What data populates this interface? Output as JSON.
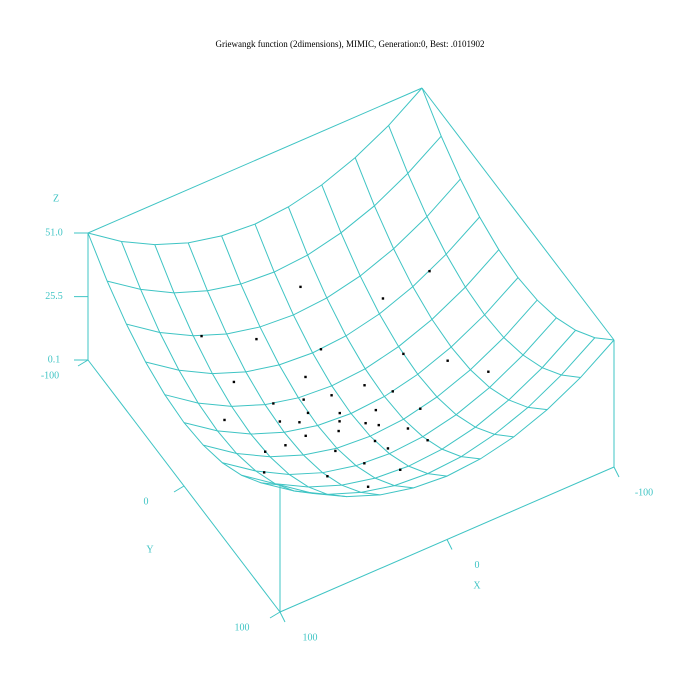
{
  "chart_data": {
    "type": "surface3d",
    "title": "Griewangk function (2dimensions), MIMIC, Generation:0, Best: .0101902",
    "xlabel": "X",
    "ylabel": "Y",
    "zlabel": "Z",
    "xlim": [
      -100,
      100
    ],
    "ylim": [
      -100,
      100
    ],
    "zlim": [
      0.1,
      51
    ],
    "xticks": [
      -100,
      0,
      100
    ],
    "yticks": [
      -100,
      0,
      100
    ],
    "zticks": [
      0.1,
      25.5,
      {
        "value": 51,
        "label": "51.0"
      }
    ],
    "color": "#3fc4c4",
    "surface": {
      "x": [
        -100,
        -80,
        -60,
        -40,
        -20,
        0,
        20,
        40,
        60,
        80,
        100
      ],
      "y": [
        -100,
        -80,
        -60,
        -40,
        -20,
        0,
        20,
        40,
        60,
        80,
        100
      ],
      "z": [
        [
          51.0,
          41.8,
          34.7,
          29.6,
          26.6,
          25.5,
          26.6,
          29.6,
          34.7,
          41.8,
          51.0
        ],
        [
          41.8,
          32.7,
          25.5,
          20.5,
          17.4,
          16.4,
          17.4,
          20.5,
          25.5,
          32.7,
          41.8
        ],
        [
          34.7,
          25.5,
          18.4,
          13.3,
          10.3,
          9.3,
          10.3,
          13.3,
          18.4,
          25.5,
          34.7
        ],
        [
          29.6,
          20.5,
          13.3,
          8.2,
          5.2,
          4.2,
          5.2,
          8.2,
          13.3,
          20.5,
          29.6
        ],
        [
          26.6,
          17.4,
          10.3,
          5.2,
          2.1,
          1.1,
          2.1,
          5.2,
          10.3,
          17.4,
          26.6
        ],
        [
          25.5,
          16.4,
          9.3,
          4.2,
          1.1,
          0.1,
          1.1,
          4.2,
          9.3,
          16.4,
          25.5
        ],
        [
          26.6,
          17.4,
          10.3,
          5.2,
          2.1,
          1.1,
          2.1,
          5.2,
          10.3,
          17.4,
          26.6
        ],
        [
          29.6,
          20.5,
          13.3,
          8.2,
          5.2,
          4.2,
          5.2,
          8.2,
          13.3,
          20.5,
          29.6
        ],
        [
          34.7,
          25.5,
          18.4,
          13.3,
          10.3,
          9.3,
          10.3,
          13.3,
          18.4,
          25.5,
          34.7
        ],
        [
          41.8,
          32.7,
          25.5,
          20.5,
          17.4,
          16.4,
          17.4,
          20.5,
          25.5,
          32.7,
          41.8
        ],
        [
          51.0,
          41.8,
          34.7,
          29.6,
          26.6,
          25.5,
          26.6,
          29.6,
          34.7,
          41.8,
          51.0
        ]
      ]
    },
    "points": {
      "color": "#000000",
      "x": [
        5,
        12,
        -8,
        20,
        -15,
        30,
        0,
        -25,
        10,
        35,
        -30,
        22,
        -5,
        45,
        -40,
        15,
        50,
        -20,
        60,
        -55,
        25,
        5,
        -45,
        40,
        70,
        -65,
        30,
        -10,
        75,
        55,
        -70,
        8,
        -3,
        18,
        -12,
        28,
        3,
        -18,
        38,
        -2
      ],
      "y": [
        -3,
        8,
        15,
        -10,
        -12,
        5,
        25,
        0,
        -30,
        -20,
        20,
        22,
        -40,
        10,
        -15,
        40,
        -35,
        45,
        15,
        5,
        -55,
        60,
        -45,
        45,
        -10,
        30,
        70,
        -70,
        40,
        -60,
        -40,
        2,
        10,
        -18,
        5,
        -5,
        -15,
        28,
        -8,
        35
      ],
      "z": [
        0.2,
        0.6,
        0.7,
        1.1,
        1.0,
        2.4,
        1.7,
        1.7,
        2.5,
        4.2,
        3.4,
        2.6,
        4.2,
        5.5,
        4.8,
        4.7,
        9.6,
        6.3,
        9.8,
        7.8,
        9.4,
        9.3,
        10.4,
        9.3,
        12.8,
        13.1,
        14.8,
        12.6,
        18.5,
        16.8,
        16.6,
        0.3,
        0.4,
        1.8,
        0.5,
        2.2,
        0.7,
        3.0,
        3.9,
        3.2
      ]
    }
  }
}
